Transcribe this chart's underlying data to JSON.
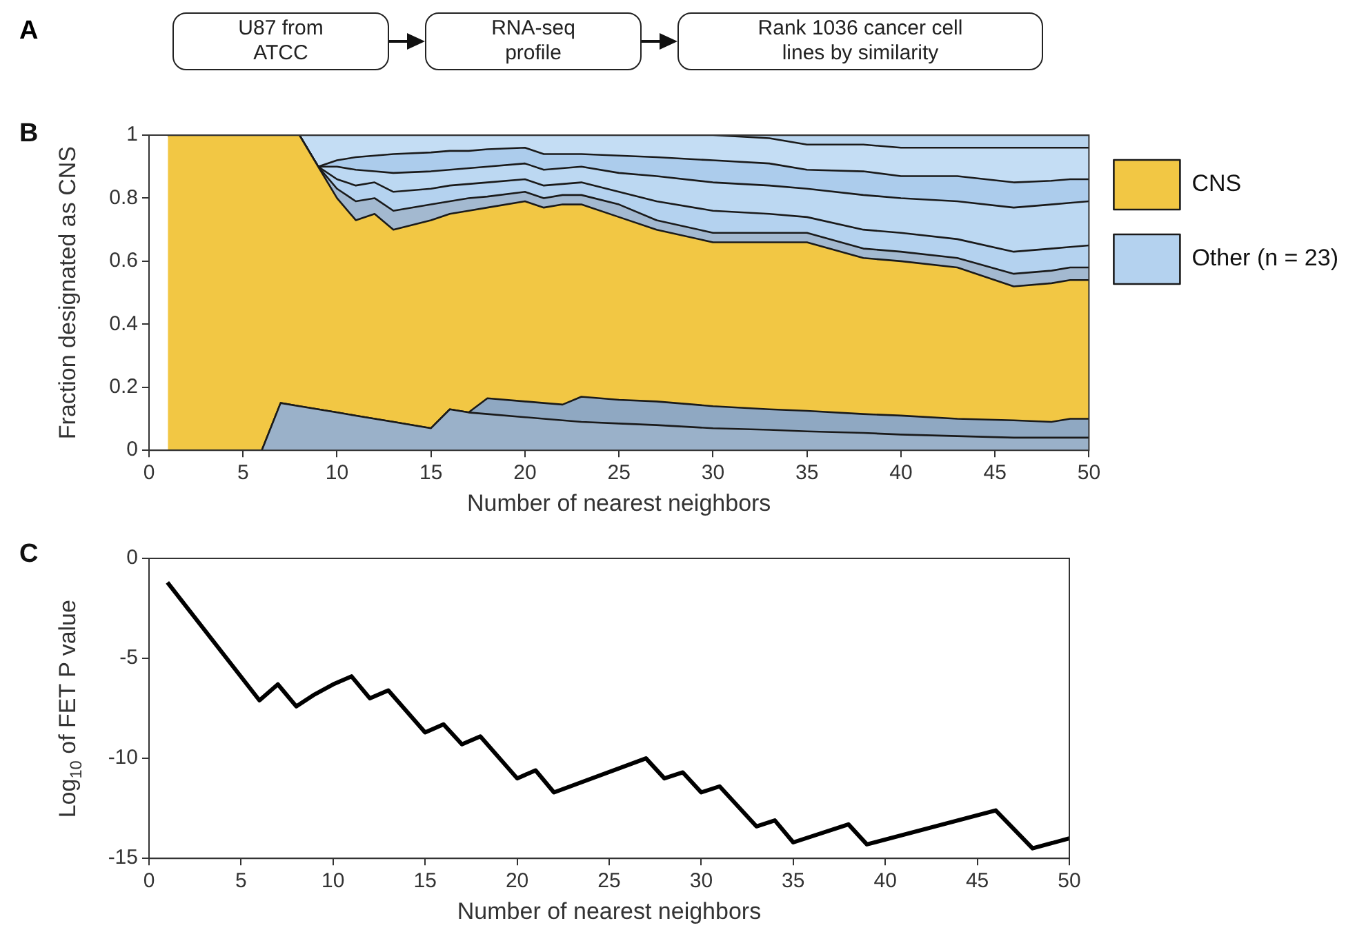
{
  "chart_data": [
    {
      "type": "other",
      "annotations": [
        "A",
        "U87 from ATCC",
        "RNA-seq profile",
        "Rank 1036 cancer cell lines by similarity"
      ]
    },
    {
      "type": "area",
      "stacked": true,
      "legend": "right",
      "annotations": [
        "B"
      ],
      "xlabel": "Number of nearest neighbors",
      "ylabel": "Fraction designated as CNS",
      "xlim": [
        0,
        50
      ],
      "xticks": [
        0,
        5,
        10,
        15,
        20,
        25,
        30,
        35,
        40,
        45,
        50
      ],
      "ylim": [
        0,
        1
      ],
      "yticks": [
        0,
        0.2,
        0.4,
        0.6,
        0.8,
        1
      ],
      "x": [
        1,
        6,
        7,
        8,
        9,
        10,
        11,
        12,
        13,
        15,
        16,
        17,
        18,
        20,
        21,
        22,
        23,
        25,
        27,
        30,
        33,
        35,
        38,
        40,
        43,
        46,
        48,
        49,
        50
      ],
      "series": [
        {
          "color": "#9ab1c9",
          "values": [
            0,
            0,
            0.15,
            0.14,
            0.13,
            0.12,
            0.11,
            0.1,
            0.09,
            0.07,
            0.13,
            0.12,
            0.115,
            0.105,
            0.1,
            0.095,
            0.09,
            0.085,
            0.08,
            0.07,
            0.065,
            0.06,
            0.055,
            0.05,
            0.045,
            0.04,
            0.04,
            0.04,
            0.04
          ]
        },
        {
          "color": "#8fa8c2",
          "values": [
            0,
            0,
            0,
            0,
            0,
            0,
            0,
            0,
            0,
            0,
            0,
            0,
            0.05,
            0.05,
            0.05,
            0.05,
            0.08,
            0.075,
            0.075,
            0.07,
            0.065,
            0.065,
            0.06,
            0.06,
            0.055,
            0.055,
            0.05,
            0.06,
            0.06
          ]
        },
        {
          "name": "CNS",
          "color": "#f2c744",
          "values": [
            1,
            1,
            0.85,
            0.86,
            0.77,
            0.68,
            0.62,
            0.65,
            0.61,
            0.66,
            0.62,
            0.64,
            0.605,
            0.635,
            0.62,
            0.635,
            0.61,
            0.58,
            0.545,
            0.52,
            0.53,
            0.535,
            0.495,
            0.49,
            0.48,
            0.425,
            0.44,
            0.44,
            0.44
          ]
        },
        {
          "color": "#a3b9d0",
          "values": [
            0,
            0,
            0,
            0,
            0,
            0.03,
            0.06,
            0.05,
            0.06,
            0.05,
            0.04,
            0.04,
            0.035,
            0.03,
            0.03,
            0.03,
            0.03,
            0.04,
            0.03,
            0.03,
            0.03,
            0.03,
            0.03,
            0.03,
            0.03,
            0.04,
            0.04,
            0.04,
            0.04
          ]
        },
        {
          "name": "Other (n = 23)",
          "color": "#b4d2ef",
          "values": [
            0,
            0,
            0,
            0,
            0,
            0.03,
            0.05,
            0.05,
            0.06,
            0.05,
            0.05,
            0.045,
            0.045,
            0.04,
            0.04,
            0.035,
            0.04,
            0.04,
            0.06,
            0.07,
            0.06,
            0.05,
            0.06,
            0.06,
            0.06,
            0.07,
            0.07,
            0.065,
            0.07
          ]
        },
        {
          "color": "#bcd8f2",
          "values": [
            0,
            0,
            0,
            0,
            0,
            0.04,
            0.05,
            0.035,
            0.06,
            0.055,
            0.05,
            0.05,
            0.05,
            0.05,
            0.05,
            0.05,
            0.05,
            0.06,
            0.08,
            0.09,
            0.09,
            0.09,
            0.11,
            0.11,
            0.12,
            0.14,
            0.14,
            0.14,
            0.14
          ]
        },
        {
          "color": "#acccec",
          "values": [
            0,
            0,
            0,
            0,
            0,
            0.02,
            0.04,
            0.05,
            0.06,
            0.06,
            0.06,
            0.055,
            0.055,
            0.05,
            0.05,
            0.045,
            0.04,
            0.055,
            0.06,
            0.07,
            0.07,
            0.06,
            0.075,
            0.07,
            0.08,
            0.08,
            0.075,
            0.075,
            0.07
          ]
        },
        {
          "color": "#c4ddf4",
          "values": [
            0,
            0,
            0,
            0,
            0.1,
            0.08,
            0.07,
            0.065,
            0.06,
            0.055,
            0.05,
            0.05,
            0.045,
            0.04,
            0.06,
            0.06,
            0.06,
            0.065,
            0.07,
            0.08,
            0.08,
            0.08,
            0.085,
            0.09,
            0.09,
            0.11,
            0.105,
            0.1,
            0.1
          ]
        },
        {
          "color": "#b8d4ee",
          "values": [
            0,
            0,
            0,
            0,
            0,
            0,
            0,
            0,
            0,
            0,
            0,
            0,
            0,
            0,
            0,
            0,
            0,
            0,
            0,
            0,
            0.01,
            0.03,
            0.03,
            0.04,
            0.04,
            0.04,
            0.04,
            0.04,
            0.04
          ]
        }
      ]
    },
    {
      "type": "line",
      "annotations": [
        "C"
      ],
      "xlabel": "Number of nearest neighbors",
      "ylabel": "Log$_{10}$ of FET P value",
      "xlim": [
        0,
        50
      ],
      "xticks": [
        0,
        5,
        10,
        15,
        20,
        25,
        30,
        35,
        40,
        45,
        50
      ],
      "ylim": [
        -15,
        0
      ],
      "yticks": [
        -15,
        -10,
        -5,
        0
      ],
      "x": [
        1,
        6,
        7,
        8,
        9,
        10,
        11,
        12,
        13,
        15,
        16,
        17,
        18,
        20,
        21,
        22,
        27,
        28,
        29,
        30,
        31,
        33,
        34,
        35,
        38,
        39,
        46,
        48,
        50
      ],
      "series": [
        {
          "color": "#000000",
          "values": [
            -1.2,
            -7.1,
            -6.3,
            -7.4,
            -6.8,
            -6.3,
            -5.9,
            -7,
            -6.6,
            -8.7,
            -8.3,
            -9.3,
            -8.9,
            -11,
            -10.6,
            -11.7,
            -10,
            -11,
            -10.7,
            -11.7,
            -11.4,
            -13.4,
            -13.1,
            -14.2,
            -13.3,
            -14.3,
            -12.6,
            -14.5,
            -14
          ]
        }
      ]
    }
  ]
}
